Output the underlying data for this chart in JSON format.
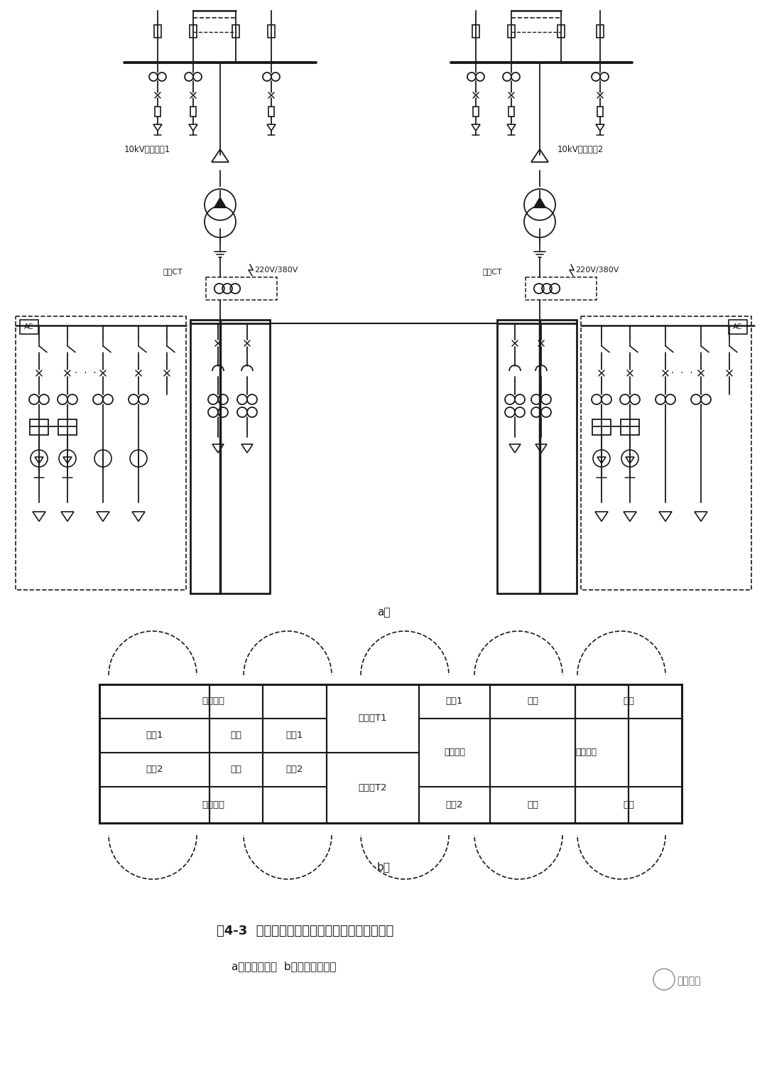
{
  "title": "图4-3  两路电源互为备用欧式箱变典型应用方案",
  "subtitle_a": "a）电气主接线  b）电气平面布置",
  "background": "#ffffff",
  "label_a": "a）",
  "label_b": "b）",
  "cable_line1": "10kV电缆进线1",
  "cable_line2": "10kV电缆进线2",
  "metering_ct": "计量CT",
  "voltage_label": "220V/380V",
  "fp_cells_left": [
    "高压走廊",
    "进线1",
    "联络",
    "出线1",
    "进线2",
    "联络",
    "出线2",
    "高压走廊"
  ],
  "fp_cells_center": [
    "变压器T1",
    "变压器T2"
  ],
  "fp_cells_right_top": [
    "进线1",
    "出线",
    "补偿"
  ],
  "fp_cells_right_mid_l": "低压联络",
  "fp_cells_right_mid_r": "低压走廊",
  "fp_cells_right_bot": [
    "进线2",
    "出线",
    "补偿"
  ],
  "watermark": "机电人脉"
}
